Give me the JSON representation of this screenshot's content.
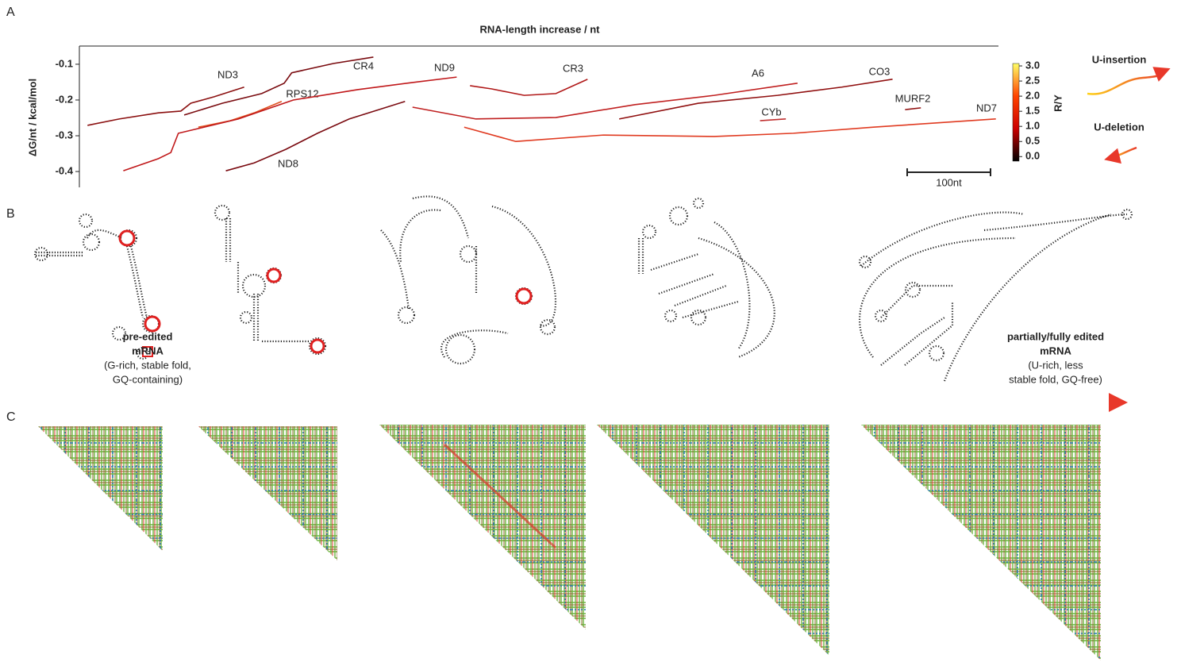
{
  "chart_data": {
    "type": "line",
    "title": "RNA-length increase / nt",
    "ylabel": "ΔG/nt / kcal/mol",
    "ylim": [
      -0.442,
      -0.058
    ],
    "yticks": [
      -0.1,
      -0.2,
      -0.3,
      -0.4
    ],
    "xlim": [
      0,
      1100
    ],
    "series": [
      {
        "name": "ND3",
        "color": "#8b1010",
        "x": [
          5,
          43,
          90,
          117,
          129,
          157,
          193
        ],
        "values": [
          -0.271,
          -0.253,
          -0.236,
          -0.231,
          -0.209,
          -0.191,
          -0.164
        ]
      },
      {
        "name": "CR4",
        "color": "#7a0c10",
        "x": [
          121,
          167,
          214,
          241,
          250,
          300,
          348
        ],
        "values": [
          -0.242,
          -0.209,
          -0.182,
          -0.153,
          -0.124,
          -0.098,
          -0.08
        ]
      },
      {
        "name": "RPS12",
        "color": "#e05020",
        "x": [
          138,
          176,
          205,
          238
        ],
        "values": [
          -0.276,
          -0.258,
          -0.236,
          -0.204
        ]
      },
      {
        "name": "ND9",
        "color": "#c0181a",
        "x": [
          48,
          90,
          105,
          114,
          186,
          252,
          329,
          395,
          448
        ],
        "values": [
          -0.398,
          -0.364,
          -0.347,
          -0.293,
          -0.253,
          -0.2,
          -0.171,
          -0.151,
          -0.136
        ]
      },
      {
        "name": "ND8",
        "color": "#7a0a10",
        "x": [
          171,
          205,
          243,
          281,
          319,
          386
        ],
        "values": [
          -0.398,
          -0.376,
          -0.338,
          -0.293,
          -0.253,
          -0.204
        ]
      },
      {
        "name": "CR3",
        "color": "#b01818",
        "x": [
          464,
          490,
          529,
          567,
          605
        ],
        "values": [
          -0.16,
          -0.169,
          -0.187,
          -0.182,
          -0.142
        ]
      },
      {
        "name": "A6",
        "color": "#c02020",
        "x": [
          395,
          471,
          567,
          662,
          757,
          857
        ],
        "values": [
          -0.22,
          -0.253,
          -0.249,
          -0.213,
          -0.187,
          -0.153
        ]
      },
      {
        "name": "CO3",
        "color": "#901010",
        "x": [
          643,
          738,
          833,
          910,
          971
        ],
        "values": [
          -0.253,
          -0.209,
          -0.187,
          -0.164,
          -0.142
        ]
      },
      {
        "name": "CYb",
        "color": "#c03030",
        "x": [
          812,
          843
        ],
        "values": [
          -0.258,
          -0.253
        ]
      },
      {
        "name": "MURF2",
        "color": "#901010",
        "x": [
          986,
          1005
        ],
        "values": [
          -0.227,
          -0.222
        ]
      },
      {
        "name": "ND7",
        "color": "#e03a20",
        "x": [
          457,
          519,
          624,
          757,
          852,
          948,
          1095
        ],
        "values": [
          -0.276,
          -0.316,
          -0.298,
          -0.302,
          -0.293,
          -0.276,
          -0.253
        ]
      }
    ],
    "colorbar": {
      "label": "R/Y",
      "lim": [
        -0.15,
        3.08
      ],
      "colors": [
        "#000000",
        "#cc0000",
        "#ff4400",
        "#ffff66"
      ],
      "ticks": [
        {
          "value": 3,
          "label": "3.0"
        },
        2.5,
        {
          "value": 2,
          "label": "2.0"
        },
        1.5,
        {
          "value": 1,
          "label": "1.0"
        },
        0.5,
        {
          "value": 0,
          "label": "0.0"
        }
      ]
    },
    "scalebar": {
      "value": 100,
      "label": "100nt"
    }
  },
  "panels": [
    "A",
    "B",
    "C"
  ],
  "editing": {
    "insertion": "U-insertion",
    "deletion": "U-deletion"
  },
  "structures": {
    "start": [
      "pre-edited",
      "mRNA",
      "(G-rich, stable fold,",
      "GQ-containing)"
    ],
    "end": [
      "partially/fully edited",
      "mRNA",
      "(U-rich, less",
      "stable fold, GQ-free)"
    ]
  }
}
